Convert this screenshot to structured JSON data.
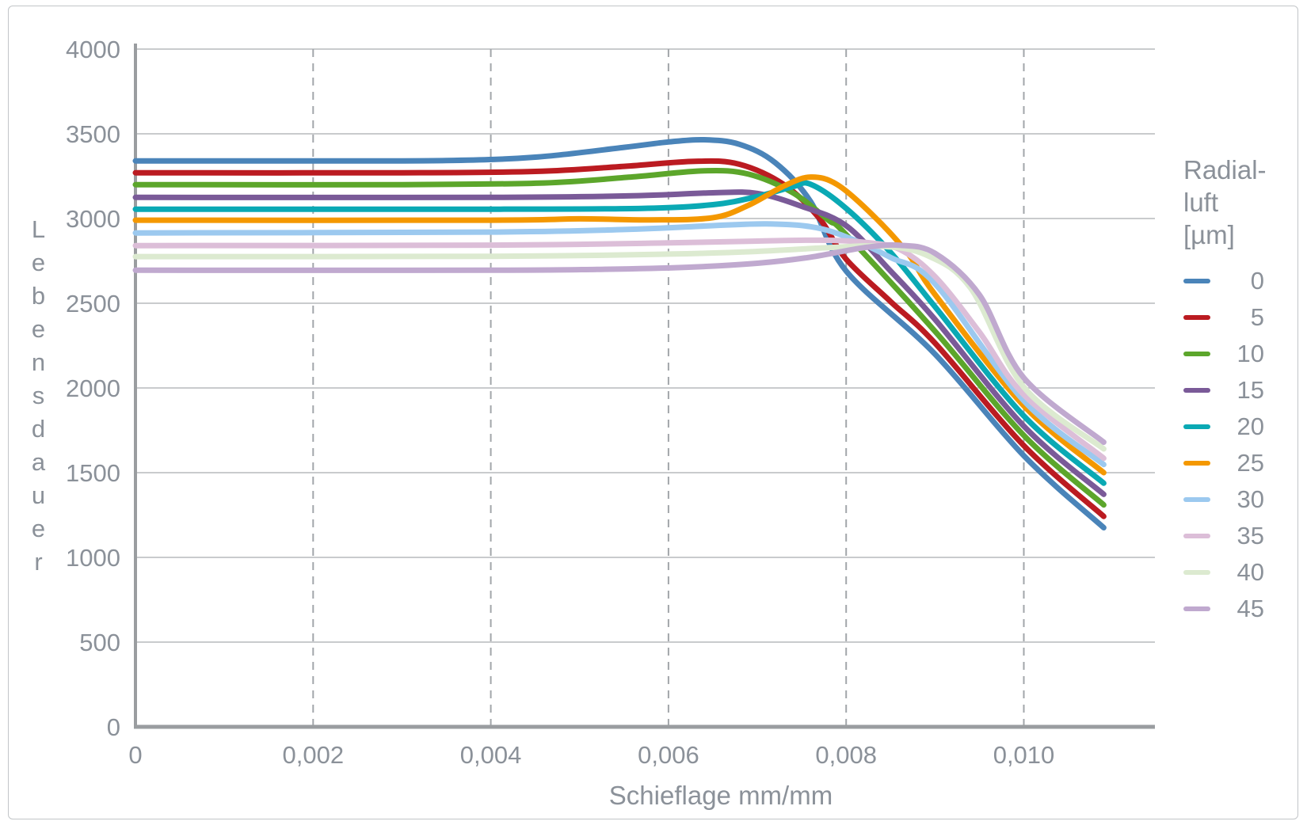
{
  "styles": {
    "text_color": "#8b9199",
    "axis_color": "#9a9da0",
    "grid_solid_color": "#c9cbcd",
    "grid_dash_color": "#a2a6aa",
    "frame_border_color": "#c2c5c8",
    "background": "#ffffff"
  },
  "chart_data": {
    "type": "line",
    "title": "",
    "xlabel": "Schieflage mm/mm",
    "ylabel": "Lebensdauer",
    "xlim": [
      0,
      0.0115
    ],
    "ylim": [
      0,
      4000
    ],
    "grid": {
      "horizontal": "solid",
      "vertical": "dashed"
    },
    "x_ticks": [
      {
        "value": 0,
        "label": "0"
      },
      {
        "value": 0.002,
        "label": "0,002"
      },
      {
        "value": 0.004,
        "label": "0,004"
      },
      {
        "value": 0.006,
        "label": "0,006"
      },
      {
        "value": 0.008,
        "label": "0,008"
      },
      {
        "value": 0.01,
        "label": "0,010"
      }
    ],
    "y_ticks": [
      {
        "value": 0,
        "label": "0"
      },
      {
        "value": 500,
        "label": "500"
      },
      {
        "value": 1000,
        "label": "1000"
      },
      {
        "value": 1500,
        "label": "1500"
      },
      {
        "value": 2000,
        "label": "2000"
      },
      {
        "value": 2500,
        "label": "2500"
      },
      {
        "value": 3000,
        "label": "3000"
      },
      {
        "value": 3500,
        "label": "3500"
      },
      {
        "value": 4000,
        "label": "4000"
      }
    ],
    "legend": {
      "position": "right",
      "title_lines": [
        "Radial-",
        "luft",
        "[µm]"
      ]
    },
    "series": [
      {
        "name": "0",
        "color": "#4a84b9",
        "points": [
          [
            0,
            3340
          ],
          [
            0.002,
            3340
          ],
          [
            0.0035,
            3342
          ],
          [
            0.0045,
            3362
          ],
          [
            0.0055,
            3420
          ],
          [
            0.006,
            3452
          ],
          [
            0.0064,
            3465
          ],
          [
            0.0068,
            3438
          ],
          [
            0.0072,
            3330
          ],
          [
            0.0076,
            3100
          ],
          [
            0.008,
            2690
          ],
          [
            0.009,
            2200
          ],
          [
            0.01,
            1600
          ],
          [
            0.0109,
            1175
          ]
        ]
      },
      {
        "name": "5",
        "color": "#bb1b21",
        "points": [
          [
            0,
            3270
          ],
          [
            0.003,
            3270
          ],
          [
            0.0045,
            3278
          ],
          [
            0.0055,
            3308
          ],
          [
            0.0063,
            3338
          ],
          [
            0.0068,
            3320
          ],
          [
            0.0073,
            3200
          ],
          [
            0.0077,
            3000
          ],
          [
            0.008,
            2760
          ],
          [
            0.0085,
            2510
          ],
          [
            0.009,
            2265
          ],
          [
            0.01,
            1660
          ],
          [
            0.0109,
            1242
          ]
        ]
      },
      {
        "name": "10",
        "color": "#5ca62b",
        "points": [
          [
            0,
            3200
          ],
          [
            0.003,
            3200
          ],
          [
            0.0046,
            3210
          ],
          [
            0.0056,
            3246
          ],
          [
            0.0064,
            3282
          ],
          [
            0.0069,
            3262
          ],
          [
            0.0074,
            3152
          ],
          [
            0.0078,
            2990
          ],
          [
            0.008,
            2905
          ],
          [
            0.009,
            2335
          ],
          [
            0.01,
            1720
          ],
          [
            0.0109,
            1310
          ]
        ]
      },
      {
        "name": "15",
        "color": "#7a5a98",
        "points": [
          [
            0,
            3125
          ],
          [
            0.004,
            3125
          ],
          [
            0.0056,
            3134
          ],
          [
            0.0065,
            3152
          ],
          [
            0.007,
            3148
          ],
          [
            0.0075,
            3072
          ],
          [
            0.008,
            2958
          ],
          [
            0.0085,
            2690
          ],
          [
            0.009,
            2405
          ],
          [
            0.01,
            1775
          ],
          [
            0.0109,
            1372
          ]
        ]
      },
      {
        "name": "20",
        "color": "#0aa9b4",
        "points": [
          [
            0,
            3055
          ],
          [
            0.004,
            3055
          ],
          [
            0.0057,
            3060
          ],
          [
            0.0065,
            3082
          ],
          [
            0.007,
            3130
          ],
          [
            0.0074,
            3188
          ],
          [
            0.0076,
            3202
          ],
          [
            0.008,
            3060
          ],
          [
            0.0085,
            2800
          ],
          [
            0.009,
            2480
          ],
          [
            0.01,
            1835
          ],
          [
            0.0109,
            1438
          ]
        ]
      },
      {
        "name": "25",
        "color": "#f49800",
        "points": [
          [
            0,
            2990
          ],
          [
            0.004,
            2990
          ],
          [
            0.005,
            2998
          ],
          [
            0.0058,
            2992
          ],
          [
            0.0065,
            3005
          ],
          [
            0.0069,
            3078
          ],
          [
            0.0073,
            3192
          ],
          [
            0.0076,
            3245
          ],
          [
            0.0079,
            3200
          ],
          [
            0.0083,
            3020
          ],
          [
            0.0087,
            2790
          ],
          [
            0.009,
            2552
          ],
          [
            0.01,
            1895
          ],
          [
            0.0109,
            1500
          ]
        ]
      },
      {
        "name": "30",
        "color": "#9cc9ef",
        "points": [
          [
            0,
            2915
          ],
          [
            0.004,
            2920
          ],
          [
            0.0055,
            2935
          ],
          [
            0.0065,
            2958
          ],
          [
            0.0071,
            2968
          ],
          [
            0.0076,
            2952
          ],
          [
            0.008,
            2892
          ],
          [
            0.0085,
            2770
          ],
          [
            0.009,
            2615
          ],
          [
            0.01,
            1925
          ],
          [
            0.0109,
            1548
          ]
        ]
      },
      {
        "name": "35",
        "color": "#dcbed8",
        "points": [
          [
            0,
            2840
          ],
          [
            0.004,
            2843
          ],
          [
            0.006,
            2856
          ],
          [
            0.007,
            2867
          ],
          [
            0.0077,
            2872
          ],
          [
            0.0082,
            2860
          ],
          [
            0.0086,
            2818
          ],
          [
            0.009,
            2658
          ],
          [
            0.0095,
            2330
          ],
          [
            0.01,
            1960
          ],
          [
            0.0109,
            1585
          ]
        ]
      },
      {
        "name": "40",
        "color": "#dcead0",
        "points": [
          [
            0,
            2775
          ],
          [
            0.004,
            2777
          ],
          [
            0.006,
            2790
          ],
          [
            0.007,
            2806
          ],
          [
            0.0078,
            2828
          ],
          [
            0.0084,
            2836
          ],
          [
            0.0089,
            2785
          ],
          [
            0.0094,
            2590
          ],
          [
            0.01,
            2005
          ],
          [
            0.0109,
            1640
          ]
        ]
      },
      {
        "name": "45",
        "color": "#c0a9cf",
        "points": [
          [
            0,
            2695
          ],
          [
            0.004,
            2695
          ],
          [
            0.0052,
            2700
          ],
          [
            0.0062,
            2712
          ],
          [
            0.007,
            2736
          ],
          [
            0.0076,
            2772
          ],
          [
            0.0082,
            2828
          ],
          [
            0.0086,
            2842
          ],
          [
            0.009,
            2795
          ],
          [
            0.0095,
            2550
          ],
          [
            0.01,
            2060
          ],
          [
            0.0109,
            1680
          ]
        ]
      }
    ]
  }
}
